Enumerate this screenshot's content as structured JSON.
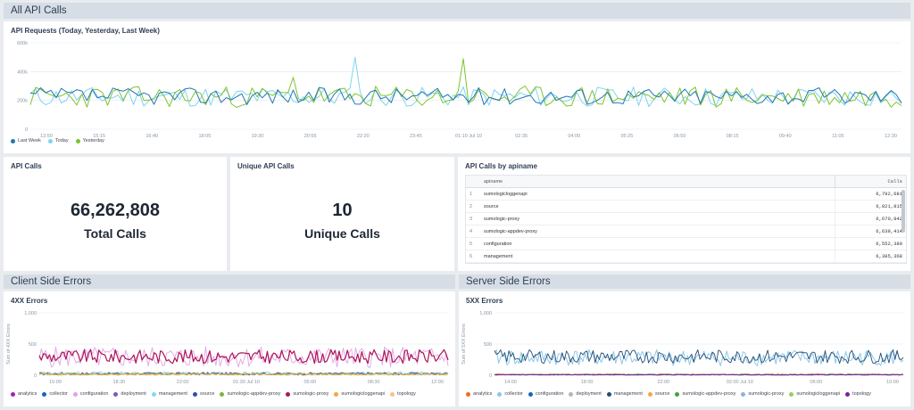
{
  "dashboard": {
    "title": "All API Calls"
  },
  "sections": {
    "client": "Client Side Errors",
    "server": "Server Side Errors"
  },
  "panels": {
    "api_requests": {
      "title": "API Requests (Today, Yesterday, Last Week)",
      "legend": [
        {
          "name": "Last Week",
          "color": "#1f77b4"
        },
        {
          "name": "Today",
          "color": "#7fd3f2"
        },
        {
          "name": "Yesterday",
          "color": "#7cc42b"
        }
      ]
    },
    "api_calls": {
      "title": "API Calls",
      "value": "66,262,808",
      "caption": "Total Calls"
    },
    "unique_calls": {
      "title": "Unique API Calls",
      "value": "10",
      "caption": "Unique Calls"
    },
    "by_apiname": {
      "title": "API Calls by apiname",
      "columns": [
        "apiname",
        "Calls"
      ],
      "rows": [
        {
          "n": "1",
          "apiname": "sumologicloggenapi",
          "calls": "6,792,681"
        },
        {
          "n": "2",
          "apiname": "source",
          "calls": "6,821,815"
        },
        {
          "n": "3",
          "apiname": "sumologic-proxy",
          "calls": "6,670,842"
        },
        {
          "n": "4",
          "apiname": "sumologic-appdev-proxy",
          "calls": "6,639,414"
        },
        {
          "n": "5",
          "apiname": "configuration",
          "calls": "6,552,380"
        },
        {
          "n": "6",
          "apiname": "management",
          "calls": "6,385,368"
        }
      ]
    },
    "errors_4xx": {
      "title": "4XX Errors",
      "legend": [
        {
          "name": "analytics",
          "color": "#9c27b0"
        },
        {
          "name": "collector",
          "color": "#1565c0"
        },
        {
          "name": "configuration",
          "color": "#e0a3e8"
        },
        {
          "name": "deployment",
          "color": "#7e57c2"
        },
        {
          "name": "management",
          "color": "#80d8f5"
        },
        {
          "name": "source",
          "color": "#3949ab"
        },
        {
          "name": "sumologic-appdev-proxy",
          "color": "#7cb342"
        },
        {
          "name": "sumologic-proxy",
          "color": "#ad1457"
        },
        {
          "name": "sumologicloggenapi",
          "color": "#f4a742"
        },
        {
          "name": "topology",
          "color": "#f6c28b"
        }
      ]
    },
    "errors_5xx": {
      "title": "5XX Errors",
      "legend": [
        {
          "name": "analytics",
          "color": "#f26b21"
        },
        {
          "name": "collector",
          "color": "#8ec7e8"
        },
        {
          "name": "configuration",
          "color": "#1565c0"
        },
        {
          "name": "deployment",
          "color": "#b0b7bf"
        },
        {
          "name": "management",
          "color": "#1f4e79"
        },
        {
          "name": "source",
          "color": "#f4a742"
        },
        {
          "name": "sumologic-appdev-proxy",
          "color": "#43a047"
        },
        {
          "name": "sumologic-proxy",
          "color": "#90b4d4"
        },
        {
          "name": "sumologicloggenapi",
          "color": "#9ccc65"
        },
        {
          "name": "topology",
          "color": "#7b1fa2"
        }
      ]
    }
  },
  "chart_data": [
    {
      "id": "api_requests",
      "type": "line",
      "title": "API Requests (Today, Yesterday, Last Week)",
      "y_ticks": [
        "600k",
        "400k",
        "200k",
        "0"
      ],
      "ylim": [
        0,
        600000
      ],
      "x_ticks": [
        "13:50",
        "15:15",
        "16:40",
        "18:05",
        "19:30",
        "20:55",
        "22:20",
        "23:45",
        "01:10 Jul 10",
        "02:35",
        "04:00",
        "05:25",
        "06:50",
        "08:15",
        "09:40",
        "11:05",
        "12:30"
      ],
      "series": [
        {
          "name": "Last Week",
          "color": "#1f77b4",
          "typical": 230000
        },
        {
          "name": "Today",
          "color": "#7fd3f2",
          "typical": 225000,
          "peak": 500000
        },
        {
          "name": "Yesterday",
          "color": "#7cc42b",
          "typical": 225000,
          "peak": 490000
        }
      ],
      "grid": true,
      "legend_position": "bottom-left"
    },
    {
      "id": "errors_4xx",
      "type": "line",
      "title": "4XX Errors",
      "ylabel": "Sum of 4XX Errors",
      "y_ticks": [
        "1,000",
        "500",
        "0"
      ],
      "ylim": [
        0,
        1000
      ],
      "x_ticks": [
        "15:00",
        "18:30",
        "22:00",
        "01:30 Jul 10",
        "05:00",
        "08:30",
        "12:00"
      ],
      "series_typical": {
        "sumologic-proxy": 300,
        "configuration": 280,
        "others": 25
      },
      "legend_position": "bottom"
    },
    {
      "id": "errors_5xx",
      "type": "line",
      "title": "5XX Errors",
      "ylabel": "Sum of 5XX Errors",
      "y_ticks": [
        "1,000",
        "500",
        "0"
      ],
      "ylim": [
        0,
        1000
      ],
      "x_ticks": [
        "14:00",
        "18:00",
        "22:00",
        "02:00 Jul 10",
        "06:00",
        "10:00"
      ],
      "series_typical": {
        "management": 300,
        "collector": 280,
        "others": 15
      },
      "legend_position": "bottom"
    }
  ]
}
